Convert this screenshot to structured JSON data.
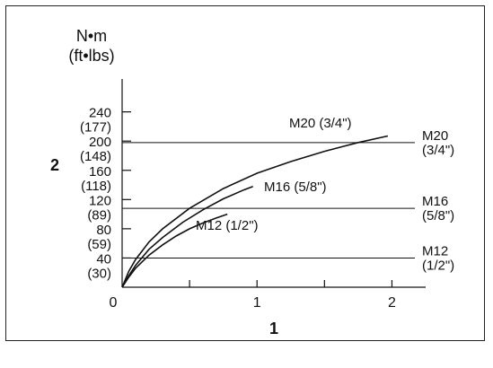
{
  "unit_top": "N•m",
  "unit_bottom": "(ft•lbs)",
  "y_axis_number": "2",
  "x_axis_number": "1",
  "chart_data": {
    "type": "line",
    "xlim": [
      0,
      2.25
    ],
    "ylim": [
      0,
      285
    ],
    "x_ticks": [
      {
        "value": 0,
        "label": "0"
      },
      {
        "value": 0.5,
        "label": ""
      },
      {
        "value": 1,
        "label": "1"
      },
      {
        "value": 1.5,
        "label": ""
      },
      {
        "value": 2,
        "label": "2"
      }
    ],
    "y_ticks": [
      {
        "value": 40,
        "label": "40",
        "sublabel": "(30)"
      },
      {
        "value": 80,
        "label": "80",
        "sublabel": "(59)"
      },
      {
        "value": 120,
        "label": "120",
        "sublabel": "(89)"
      },
      {
        "value": 160,
        "label": "160",
        "sublabel": "(118)"
      },
      {
        "value": 200,
        "label": "200",
        "sublabel": "(148)"
      },
      {
        "value": 240,
        "label": "240",
        "sublabel": "(177)"
      }
    ],
    "series": [
      {
        "name": "M20 (3/4\")",
        "x": [
          0,
          0.05,
          0.1,
          0.2,
          0.3,
          0.5,
          0.75,
          1.0,
          1.25,
          1.5,
          1.75,
          1.97
        ],
        "y": [
          0,
          22,
          38,
          62,
          80,
          108,
          135,
          156,
          172,
          186,
          198,
          207
        ]
      },
      {
        "name": "M16 (5/8\")",
        "x": [
          0,
          0.05,
          0.1,
          0.2,
          0.3,
          0.45,
          0.6,
          0.75,
          0.9,
          0.97
        ],
        "y": [
          0,
          16,
          30,
          52,
          68,
          89,
          106,
          121,
          133,
          138
        ]
      },
      {
        "name": "M12 (1/2\")",
        "x": [
          0,
          0.05,
          0.1,
          0.2,
          0.3,
          0.4,
          0.5,
          0.6,
          0.7,
          0.78
        ],
        "y": [
          0,
          14,
          26,
          44,
          58,
          70,
          80,
          88,
          95,
          100
        ]
      }
    ],
    "reference_lines": [
      {
        "value": 198,
        "label_top": "M20",
        "label_bottom": "(3/4\")"
      },
      {
        "value": 108,
        "label_top": "M16",
        "label_bottom": "(5/8\")"
      },
      {
        "value": 40,
        "label_top": "M12",
        "label_bottom": "(1/2\")"
      }
    ]
  }
}
